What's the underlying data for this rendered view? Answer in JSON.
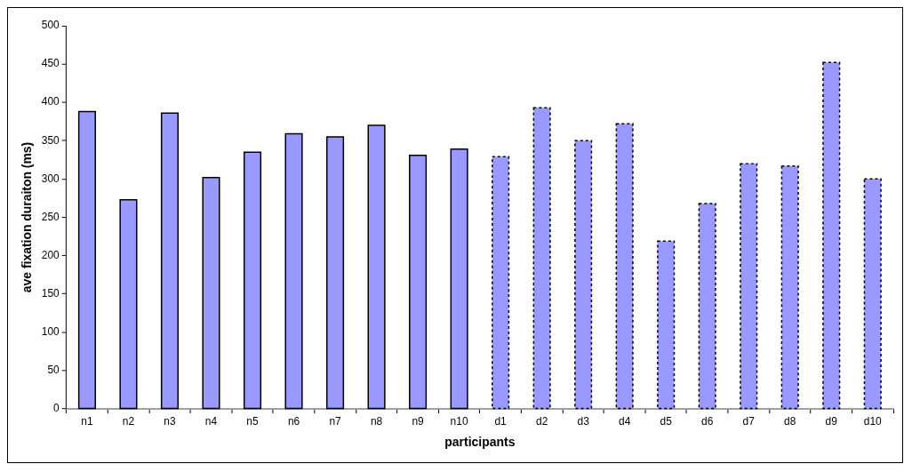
{
  "chart_data": {
    "type": "bar",
    "xlabel": "participants",
    "ylabel": "ave fixation duraiton (ms)",
    "categories": [
      "n1",
      "n2",
      "n3",
      "n4",
      "n5",
      "n6",
      "n7",
      "n8",
      "n9",
      "n10",
      "d1",
      "d2",
      "d3",
      "d4",
      "d5",
      "d6",
      "d7",
      "d8",
      "d9",
      "d10"
    ],
    "series": [
      {
        "color": "#9999ff",
        "line_style": "solid",
        "values": [
          388,
          273,
          386,
          302,
          335,
          359,
          355,
          370,
          331,
          339,
          null,
          null,
          null,
          null,
          null,
          null,
          null,
          null,
          null,
          null
        ]
      },
      {
        "color": "#9999ff",
        "line_style": "dashed",
        "values": [
          null,
          null,
          null,
          null,
          null,
          null,
          null,
          null,
          null,
          null,
          329,
          393,
          350,
          372,
          219,
          268,
          320,
          317,
          452,
          300
        ]
      }
    ],
    "ylim": [
      0,
      500
    ],
    "yticks": [
      0,
      50,
      100,
      150,
      200,
      250,
      300,
      350,
      400,
      450,
      500
    ],
    "grid": false,
    "legend": false
  }
}
